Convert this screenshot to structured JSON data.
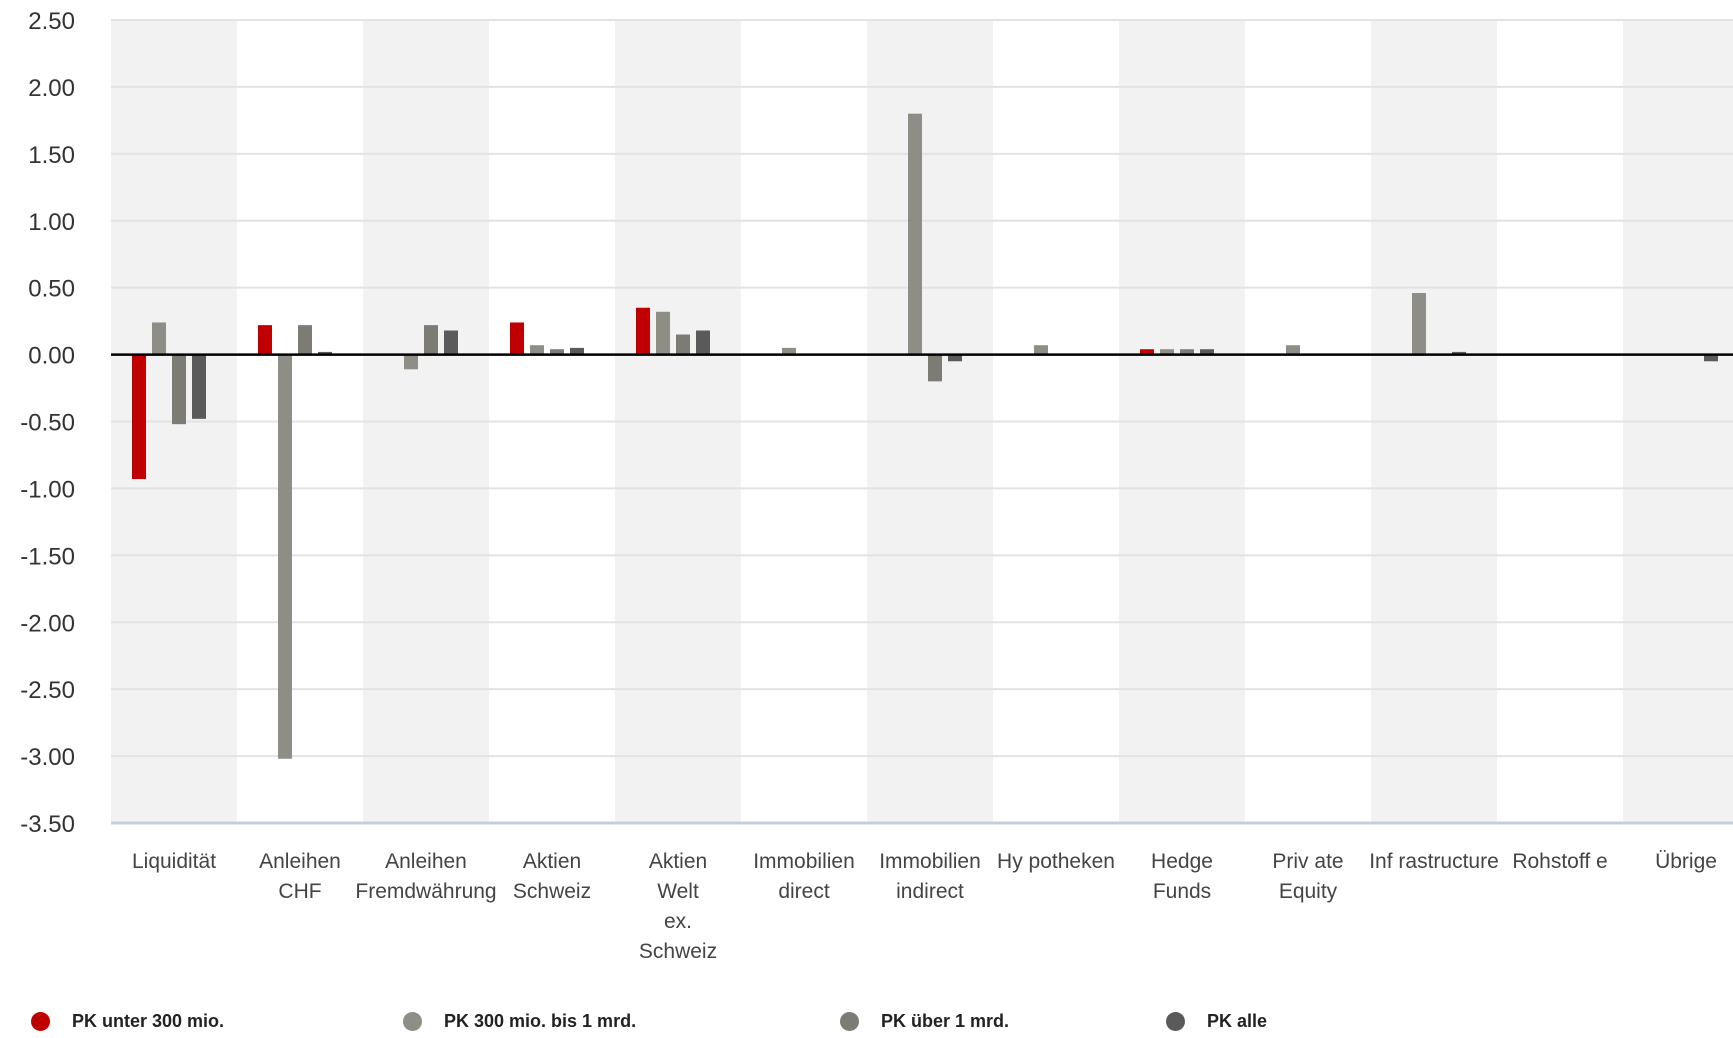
{
  "chart_data": {
    "type": "bar",
    "categories": [
      [
        "Liquidität"
      ],
      [
        "Anleihen",
        "CHF"
      ],
      [
        "Anleihen",
        "Fremdwährung"
      ],
      [
        "Aktien",
        "Schweiz"
      ],
      [
        "Aktien",
        "Welt",
        "ex.",
        "Schweiz"
      ],
      [
        "Immobilien",
        "direct"
      ],
      [
        "Immobilien",
        "indirect"
      ],
      [
        "Hy potheken"
      ],
      [
        "Hedge",
        "Funds"
      ],
      [
        "Priv ate",
        "Equity"
      ],
      [
        "Inf rastructure"
      ],
      [
        "Rohstoff e"
      ],
      [
        "Übrige"
      ]
    ],
    "series": [
      {
        "name": "PK unter 300 mio.",
        "color": "#c00000",
        "values": [
          -0.93,
          0.22,
          0,
          0.24,
          0.35,
          0,
          0,
          0,
          0.04,
          0,
          0,
          0,
          0
        ]
      },
      {
        "name": "PK 300 mio. bis 1 mrd.",
        "color": "#8e8e86",
        "values": [
          0.24,
          -3.02,
          -0.11,
          0.07,
          0.32,
          0.05,
          1.8,
          0.07,
          0.04,
          0.07,
          0.46,
          0,
          0
        ]
      },
      {
        "name": "PK über 1 mrd.",
        "color": "#7c7c75",
        "values": [
          -0.52,
          0.22,
          0.22,
          0.04,
          0.15,
          0,
          -0.2,
          0,
          0.04,
          0,
          0,
          0,
          0
        ]
      },
      {
        "name": "PK alle",
        "color": "#5a5a5a",
        "values": [
          -0.48,
          0.02,
          0.18,
          0.05,
          0.18,
          0,
          -0.05,
          0,
          0.04,
          0,
          0.02,
          0,
          -0.05
        ]
      }
    ],
    "ylim": [
      -3.5,
      2.5
    ],
    "yticks": [
      "2.50",
      "2.00",
      "1.50",
      "1.00",
      "0.50",
      "0.00",
      "-0.50",
      "-1.00",
      "-1.50",
      "-2.00",
      "-2.50",
      "-3.00",
      "-3.50"
    ],
    "ytick_values": [
      2.5,
      2.0,
      1.5,
      1.0,
      0.5,
      0.0,
      -0.5,
      -1.0,
      -1.5,
      -2.0,
      -2.5,
      -3.0,
      -3.5
    ],
    "grid": true,
    "legend_position": "bottom",
    "colors": {
      "band": "#f2f2f2",
      "grid": "#e3e3e3",
      "zero_line": "#000000",
      "baseline": "#c5cde0"
    }
  }
}
